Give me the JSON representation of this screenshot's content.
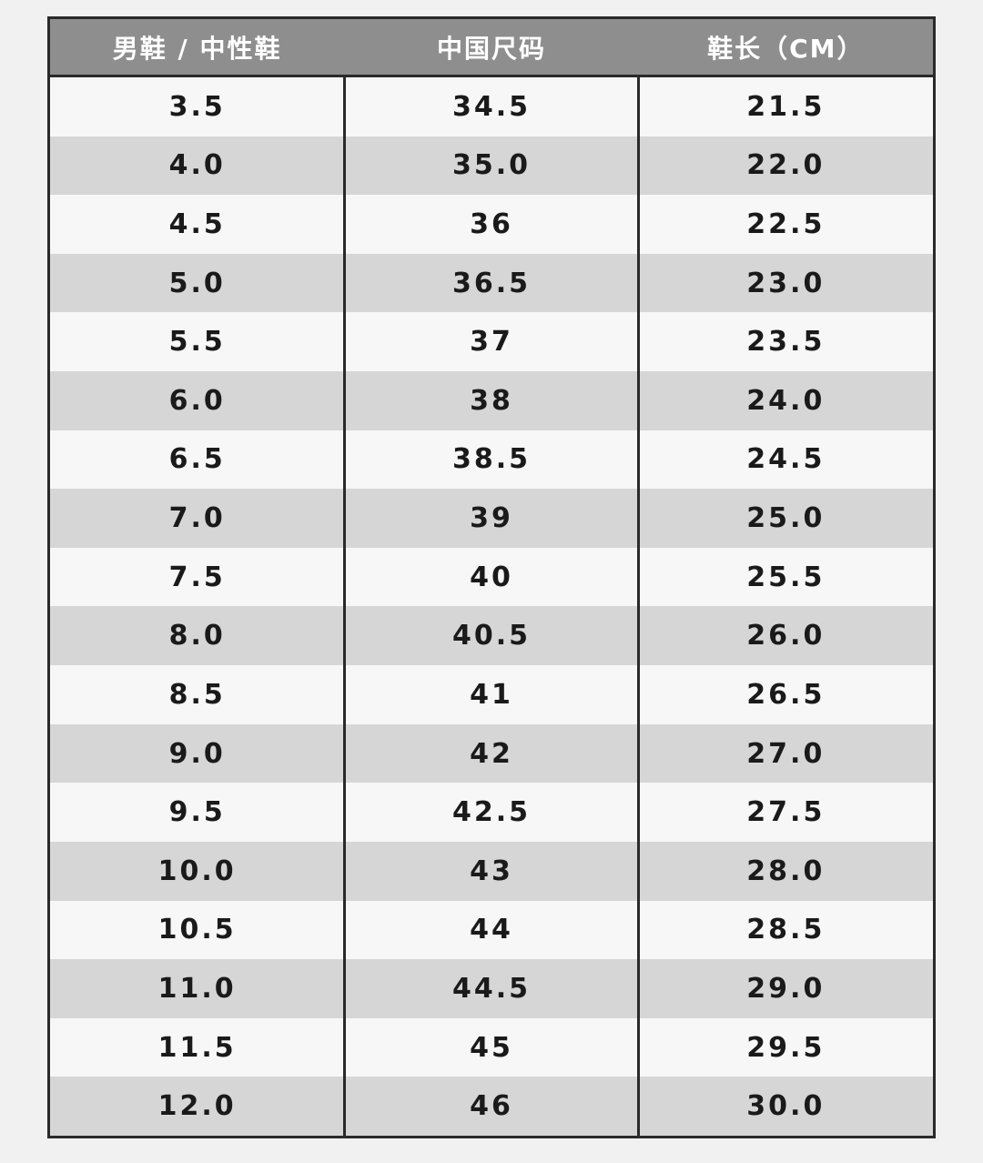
{
  "table": {
    "headers": [
      "男鞋 / 中性鞋",
      "中国尺码",
      "鞋长（CM）"
    ],
    "rows": [
      [
        "3.5",
        "34.5",
        "21.5"
      ],
      [
        "4.0",
        "35.0",
        "22.0"
      ],
      [
        "4.5",
        "36",
        "22.5"
      ],
      [
        "5.0",
        "36.5",
        "23.0"
      ],
      [
        "5.5",
        "37",
        "23.5"
      ],
      [
        "6.0",
        "38",
        "24.0"
      ],
      [
        "6.5",
        "38.5",
        "24.5"
      ],
      [
        "7.0",
        "39",
        "25.0"
      ],
      [
        "7.5",
        "40",
        "25.5"
      ],
      [
        "8.0",
        "40.5",
        "26.0"
      ],
      [
        "8.5",
        "41",
        "26.5"
      ],
      [
        "9.0",
        "42",
        "27.0"
      ],
      [
        "9.5",
        "42.5",
        "27.5"
      ],
      [
        "10.0",
        "43",
        "28.0"
      ],
      [
        "10.5",
        "44",
        "28.5"
      ],
      [
        "11.0",
        "44.5",
        "29.0"
      ],
      [
        "11.5",
        "45",
        "29.5"
      ],
      [
        "12.0",
        "46",
        "30.0"
      ]
    ]
  },
  "colors": {
    "header_bg": "#8e8e8e",
    "stripe": "#d6d6d6",
    "border": "#2a2a2a"
  }
}
